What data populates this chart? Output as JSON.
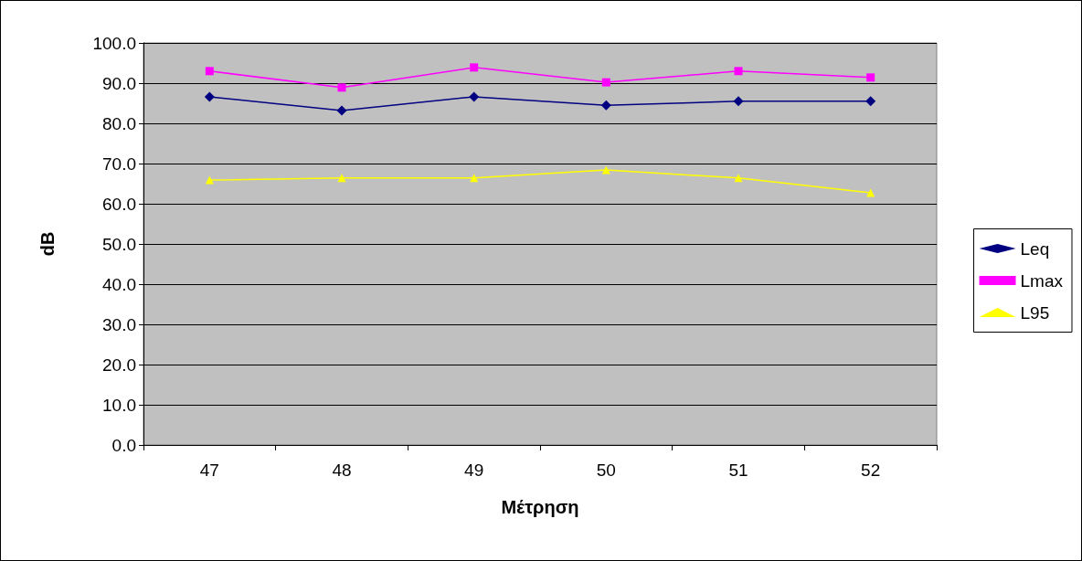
{
  "chart_data": {
    "type": "line",
    "xlabel": "Μέτρηση",
    "ylabel": "dB",
    "categories": [
      "47",
      "48",
      "49",
      "50",
      "51",
      "52"
    ],
    "series": [
      {
        "name": "Leq",
        "color": "#000080",
        "marker": "diamond",
        "values": [
          86.6,
          83.2,
          86.6,
          84.5,
          85.5,
          85.5
        ]
      },
      {
        "name": "Lmax",
        "color": "#ff00ff",
        "marker": "square",
        "values": [
          93.0,
          88.9,
          93.9,
          90.2,
          93.0,
          91.4
        ]
      },
      {
        "name": "L95",
        "color": "#ffff00",
        "marker": "triangle",
        "values": [
          65.9,
          66.4,
          66.4,
          68.4,
          66.4,
          62.7
        ]
      }
    ],
    "ylim": [
      0,
      100
    ],
    "yticks": [
      {
        "value": 0,
        "label": "0.0"
      },
      {
        "value": 10,
        "label": "10.0"
      },
      {
        "value": 20,
        "label": "20.0"
      },
      {
        "value": 30,
        "label": "30.0"
      },
      {
        "value": 40,
        "label": "40.0"
      },
      {
        "value": 50,
        "label": "50.0"
      },
      {
        "value": 60,
        "label": "60.0"
      },
      {
        "value": 70,
        "label": "70.0"
      },
      {
        "value": 80,
        "label": "80.0"
      },
      {
        "value": 90,
        "label": "90.0"
      },
      {
        "value": 100,
        "label": "100.0"
      }
    ],
    "grid": "y",
    "legend": "right",
    "line_style": "solid"
  }
}
